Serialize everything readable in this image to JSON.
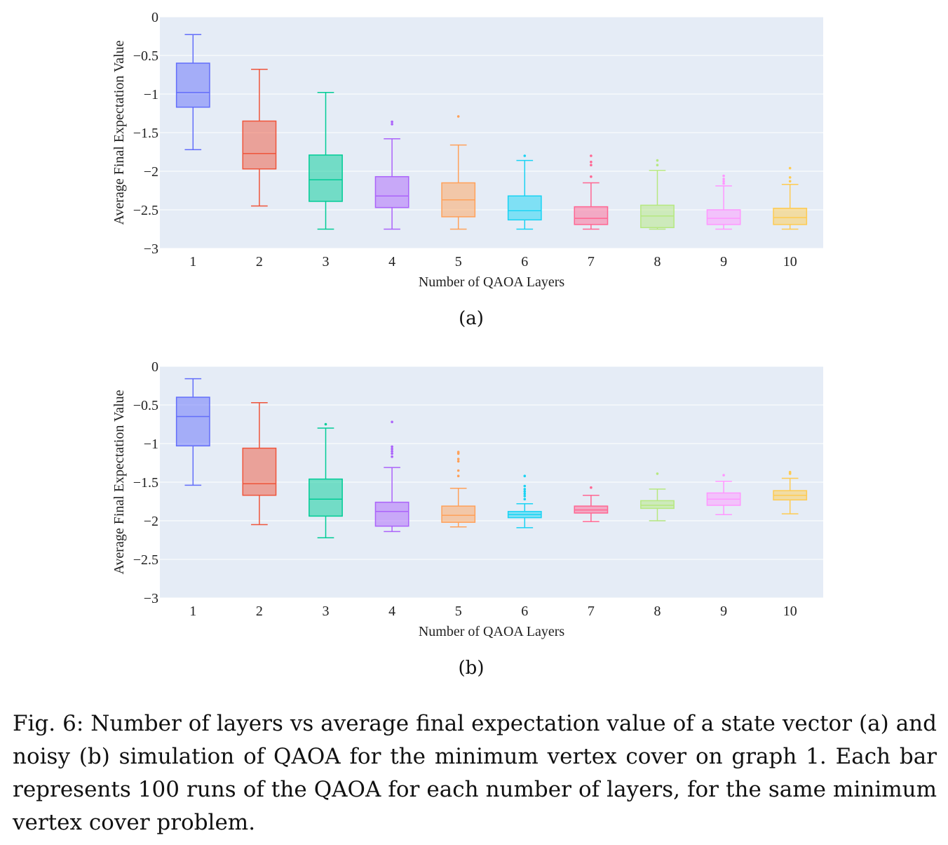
{
  "caption": "Fig. 6: Number of layers vs average final expectation value of a state vector (a) and noisy (b) simulation of QAOA for the minimum vertex cover on graph 1. Each bar represents 100 runs of the QAOA for each number of layers, for the same minimum vertex cover problem.",
  "colors": [
    "#636efa",
    "#ef553b",
    "#00cc96",
    "#ab63fa",
    "#ffa15a",
    "#19d3f3",
    "#ff6692",
    "#b6e880",
    "#ff97ff",
    "#fecb52"
  ],
  "plot_background": "#e5ecf6",
  "chart_data": [
    {
      "type": "box",
      "subcaption": "(a)",
      "xlabel": "Number of QAOA Layers",
      "ylabel": "Average Final Expectation Value",
      "ylim": [
        -3,
        0
      ],
      "yticks": [
        0,
        -0.5,
        -1,
        -1.5,
        -2,
        -2.5,
        -3
      ],
      "ytick_labels": [
        "0",
        "−0.5",
        "−1",
        "−1.5",
        "−2",
        "−2.5",
        "−3"
      ],
      "categories": [
        "1",
        "2",
        "3",
        "4",
        "5",
        "6",
        "7",
        "8",
        "9",
        "10"
      ],
      "grid": true,
      "boxes": [
        {
          "min": -1.72,
          "q1": -1.17,
          "median": -0.98,
          "q3": -0.6,
          "max": -0.23,
          "outliers": []
        },
        {
          "min": -2.45,
          "q1": -1.97,
          "median": -1.77,
          "q3": -1.35,
          "max": -0.68,
          "outliers": []
        },
        {
          "min": -2.75,
          "q1": -2.39,
          "median": -2.11,
          "q3": -1.79,
          "max": -0.98,
          "outliers": []
        },
        {
          "min": -2.75,
          "q1": -2.47,
          "median": -2.32,
          "q3": -2.07,
          "max": -1.58,
          "outliers": [
            -1.36,
            -1.39
          ]
        },
        {
          "min": -2.75,
          "q1": -2.59,
          "median": -2.37,
          "q3": -2.15,
          "max": -1.66,
          "outliers": [
            -1.29
          ]
        },
        {
          "min": -2.75,
          "q1": -2.63,
          "median": -2.51,
          "q3": -2.32,
          "max": -1.86,
          "outliers": [
            -1.8
          ]
        },
        {
          "min": -2.75,
          "q1": -2.69,
          "median": -2.61,
          "q3": -2.46,
          "max": -2.15,
          "outliers": [
            -1.8,
            -1.88,
            -1.92,
            -2.07
          ]
        },
        {
          "min": -2.75,
          "q1": -2.73,
          "median": -2.58,
          "q3": -2.44,
          "max": -1.99,
          "outliers": [
            -1.86,
            -1.92
          ]
        },
        {
          "min": -2.75,
          "q1": -2.69,
          "median": -2.61,
          "q3": -2.5,
          "max": -2.19,
          "outliers": [
            -2.06,
            -2.1,
            -2.13,
            -2.16
          ]
        },
        {
          "min": -2.75,
          "q1": -2.69,
          "median": -2.6,
          "q3": -2.48,
          "max": -2.17,
          "outliers": [
            -1.96,
            -2.08,
            -2.13
          ]
        }
      ]
    },
    {
      "type": "box",
      "subcaption": "(b)",
      "xlabel": "Number of QAOA Layers",
      "ylabel": "Average Final Expectation Value",
      "ylim": [
        -3,
        0
      ],
      "yticks": [
        0,
        -0.5,
        -1,
        -1.5,
        -2,
        -2.5,
        -3
      ],
      "ytick_labels": [
        "0",
        "−0.5",
        "−1",
        "−1.5",
        "−2",
        "−2.5",
        "−3"
      ],
      "categories": [
        "1",
        "2",
        "3",
        "4",
        "5",
        "6",
        "7",
        "8",
        "9",
        "10"
      ],
      "grid": true,
      "boxes": [
        {
          "min": -1.54,
          "q1": -1.03,
          "median": -0.65,
          "q3": -0.4,
          "max": -0.16,
          "outliers": []
        },
        {
          "min": -2.05,
          "q1": -1.67,
          "median": -1.52,
          "q3": -1.06,
          "max": -0.47,
          "outliers": []
        },
        {
          "min": -2.22,
          "q1": -1.94,
          "median": -1.72,
          "q3": -1.46,
          "max": -0.8,
          "outliers": [
            -0.75
          ]
        },
        {
          "min": -2.14,
          "q1": -2.07,
          "median": -1.88,
          "q3": -1.76,
          "max": -1.31,
          "outliers": [
            -0.72,
            -1.04,
            -1.07,
            -1.1,
            -1.13,
            -1.17
          ]
        },
        {
          "min": -2.08,
          "q1": -2.02,
          "median": -1.93,
          "q3": -1.81,
          "max": -1.58,
          "outliers": [
            -1.11,
            -1.13,
            -1.2,
            -1.23,
            -1.35,
            -1.42
          ]
        },
        {
          "min": -2.09,
          "q1": -1.96,
          "median": -1.92,
          "q3": -1.88,
          "max": -1.78,
          "outliers": [
            -1.42,
            -1.55,
            -1.59,
            -1.62,
            -1.65,
            -1.68,
            -1.72
          ]
        },
        {
          "min": -2.01,
          "q1": -1.9,
          "median": -1.86,
          "q3": -1.81,
          "max": -1.67,
          "outliers": [
            -1.57
          ]
        },
        {
          "min": -2.0,
          "q1": -1.84,
          "median": -1.8,
          "q3": -1.74,
          "max": -1.59,
          "outliers": [
            -1.39
          ]
        },
        {
          "min": -1.92,
          "q1": -1.8,
          "median": -1.72,
          "q3": -1.64,
          "max": -1.49,
          "outliers": [
            -1.41
          ]
        },
        {
          "min": -1.91,
          "q1": -1.73,
          "median": -1.67,
          "q3": -1.61,
          "max": -1.45,
          "outliers": [
            -1.37,
            -1.39
          ]
        }
      ]
    }
  ]
}
